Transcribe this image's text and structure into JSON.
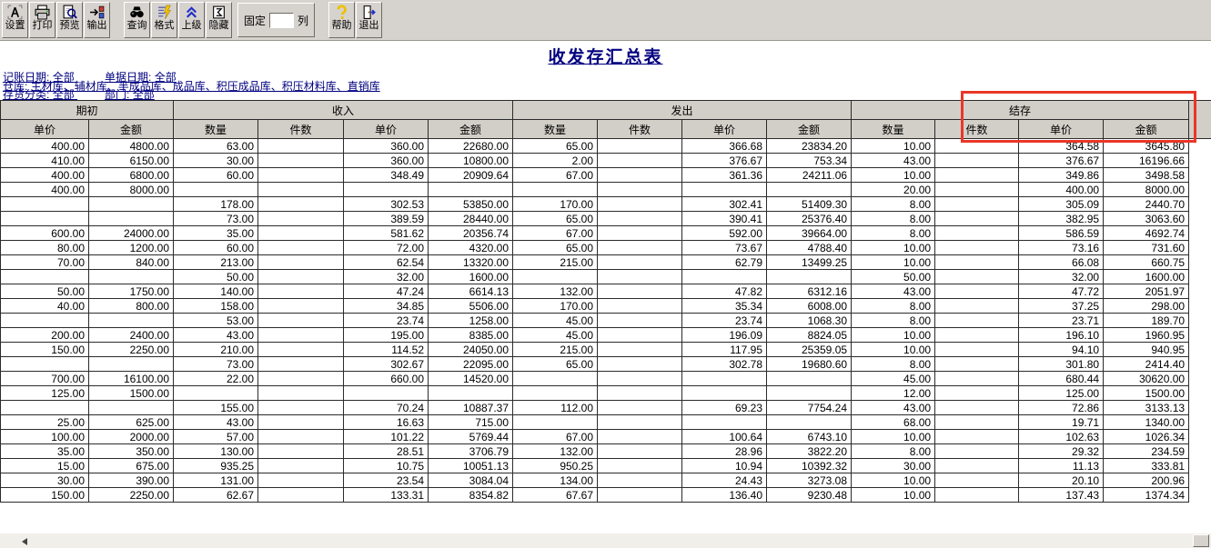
{
  "toolbar": {
    "buttons": [
      {
        "label": "设置",
        "icon": "settings-icon"
      },
      {
        "label": "打印",
        "icon": "printer-icon"
      },
      {
        "label": "预览",
        "icon": "preview-icon"
      },
      {
        "label": "输出",
        "icon": "export-icon"
      },
      {
        "label": "查询",
        "icon": "query-icon"
      },
      {
        "label": "格式",
        "icon": "format-icon"
      },
      {
        "label": "上级",
        "icon": "up-level-icon"
      },
      {
        "label": "隐藏",
        "icon": "hide-icon"
      },
      {
        "label": "帮助",
        "icon": "help-icon"
      },
      {
        "label": "退出",
        "icon": "exit-icon"
      }
    ],
    "fixed_panel": {
      "label_before": "固定",
      "label_after": "列",
      "input_value": ""
    }
  },
  "report": {
    "title": "收发存汇总表",
    "filters": {
      "line1": [
        {
          "label": "记账日期:",
          "value": "全部"
        },
        {
          "label": "单据日期:",
          "value": "全部"
        }
      ],
      "line2": {
        "label": "仓库:",
        "value": "主材库、辅材库、半成品库、成品库、积压成品库、积压材料库、直销库"
      },
      "line3": [
        {
          "label": "存货分类:",
          "value": "全部"
        },
        {
          "label": "部门:",
          "value": "全部"
        }
      ]
    }
  },
  "table": {
    "groups": [
      {
        "label": "期初",
        "span": 2
      },
      {
        "label": "收入",
        "span": 4
      },
      {
        "label": "发出",
        "span": 4
      },
      {
        "label": "结存",
        "span": 4
      }
    ],
    "columns": [
      "单价",
      "金额",
      "数量",
      "件数",
      "单价",
      "金额",
      "数量",
      "件数",
      "单价",
      "金额",
      "数量",
      "件数",
      "单价",
      "金额"
    ],
    "rows": [
      [
        "400.00",
        "4800.00",
        "63.00",
        "",
        "360.00",
        "22680.00",
        "65.00",
        "",
        "366.68",
        "23834.20",
        "10.00",
        "",
        "364.58",
        "3645.80"
      ],
      [
        "410.00",
        "6150.00",
        "30.00",
        "",
        "360.00",
        "10800.00",
        "2.00",
        "",
        "376.67",
        "753.34",
        "43.00",
        "",
        "376.67",
        "16196.66"
      ],
      [
        "400.00",
        "6800.00",
        "60.00",
        "",
        "348.49",
        "20909.64",
        "67.00",
        "",
        "361.36",
        "24211.06",
        "10.00",
        "",
        "349.86",
        "3498.58"
      ],
      [
        "400.00",
        "8000.00",
        "",
        "",
        "",
        "",
        "",
        "",
        "",
        "",
        "20.00",
        "",
        "400.00",
        "8000.00"
      ],
      [
        "",
        "",
        "178.00",
        "",
        "302.53",
        "53850.00",
        "170.00",
        "",
        "302.41",
        "51409.30",
        "8.00",
        "",
        "305.09",
        "2440.70"
      ],
      [
        "",
        "",
        "73.00",
        "",
        "389.59",
        "28440.00",
        "65.00",
        "",
        "390.41",
        "25376.40",
        "8.00",
        "",
        "382.95",
        "3063.60"
      ],
      [
        "600.00",
        "24000.00",
        "35.00",
        "",
        "581.62",
        "20356.74",
        "67.00",
        "",
        "592.00",
        "39664.00",
        "8.00",
        "",
        "586.59",
        "4692.74"
      ],
      [
        "80.00",
        "1200.00",
        "60.00",
        "",
        "72.00",
        "4320.00",
        "65.00",
        "",
        "73.67",
        "4788.40",
        "10.00",
        "",
        "73.16",
        "731.60"
      ],
      [
        "70.00",
        "840.00",
        "213.00",
        "",
        "62.54",
        "13320.00",
        "215.00",
        "",
        "62.79",
        "13499.25",
        "10.00",
        "",
        "66.08",
        "660.75"
      ],
      [
        "",
        "",
        "50.00",
        "",
        "32.00",
        "1600.00",
        "",
        "",
        "",
        "",
        "50.00",
        "",
        "32.00",
        "1600.00"
      ],
      [
        "50.00",
        "1750.00",
        "140.00",
        "",
        "47.24",
        "6614.13",
        "132.00",
        "",
        "47.82",
        "6312.16",
        "43.00",
        "",
        "47.72",
        "2051.97"
      ],
      [
        "40.00",
        "800.00",
        "158.00",
        "",
        "34.85",
        "5506.00",
        "170.00",
        "",
        "35.34",
        "6008.00",
        "8.00",
        "",
        "37.25",
        "298.00"
      ],
      [
        "",
        "",
        "53.00",
        "",
        "23.74",
        "1258.00",
        "45.00",
        "",
        "23.74",
        "1068.30",
        "8.00",
        "",
        "23.71",
        "189.70"
      ],
      [
        "200.00",
        "2400.00",
        "43.00",
        "",
        "195.00",
        "8385.00",
        "45.00",
        "",
        "196.09",
        "8824.05",
        "10.00",
        "",
        "196.10",
        "1960.95"
      ],
      [
        "150.00",
        "2250.00",
        "210.00",
        "",
        "114.52",
        "24050.00",
        "215.00",
        "",
        "117.95",
        "25359.05",
        "10.00",
        "",
        "94.10",
        "940.95"
      ],
      [
        "",
        "",
        "73.00",
        "",
        "302.67",
        "22095.00",
        "65.00",
        "",
        "302.78",
        "19680.60",
        "8.00",
        "",
        "301.80",
        "2414.40"
      ],
      [
        "700.00",
        "16100.00",
        "22.00",
        "",
        "660.00",
        "14520.00",
        "",
        "",
        "",
        "",
        "45.00",
        "",
        "680.44",
        "30620.00"
      ],
      [
        "125.00",
        "1500.00",
        "",
        "",
        "",
        "",
        "",
        "",
        "",
        "",
        "12.00",
        "",
        "125.00",
        "1500.00"
      ],
      [
        "",
        "",
        "155.00",
        "",
        "70.24",
        "10887.37",
        "112.00",
        "",
        "69.23",
        "7754.24",
        "43.00",
        "",
        "72.86",
        "3133.13"
      ],
      [
        "25.00",
        "625.00",
        "43.00",
        "",
        "16.63",
        "715.00",
        "",
        "",
        "",
        "",
        "68.00",
        "",
        "19.71",
        "1340.00"
      ],
      [
        "100.00",
        "2000.00",
        "57.00",
        "",
        "101.22",
        "5769.44",
        "67.00",
        "",
        "100.64",
        "6743.10",
        "10.00",
        "",
        "102.63",
        "1026.34"
      ],
      [
        "35.00",
        "350.00",
        "130.00",
        "",
        "28.51",
        "3706.79",
        "132.00",
        "",
        "28.96",
        "3822.20",
        "8.00",
        "",
        "29.32",
        "234.59"
      ],
      [
        "15.00",
        "675.00",
        "935.25",
        "",
        "10.75",
        "10051.13",
        "950.25",
        "",
        "10.94",
        "10392.32",
        "30.00",
        "",
        "11.13",
        "333.81"
      ],
      [
        "30.00",
        "390.00",
        "131.00",
        "",
        "23.54",
        "3084.04",
        "134.00",
        "",
        "24.43",
        "3273.08",
        "10.00",
        "",
        "20.10",
        "200.96"
      ],
      [
        "150.00",
        "2250.00",
        "62.67",
        "",
        "133.31",
        "8354.82",
        "67.67",
        "",
        "136.40",
        "9230.48",
        "10.00",
        "",
        "137.43",
        "1374.34"
      ]
    ],
    "highlight": {
      "color": "#ea3728",
      "target": "结存 件数/单价/金额 header columns"
    }
  }
}
